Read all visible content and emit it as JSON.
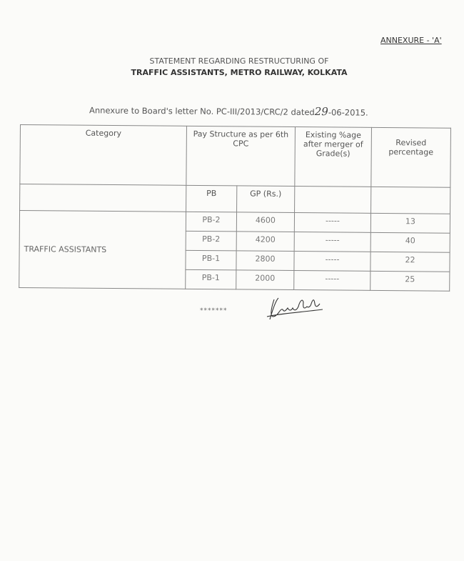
{
  "annexure": "ANNEXURE - 'A'",
  "title_line1": "STATEMENT  REGARDING RESTRUCTURING OF",
  "title_line2": "TRAFFIC ASSISTANTS, METRO RAILWAY, KOLKATA",
  "letter": {
    "prefix": "Annexure to Board's letter No. PC-III/2013/CRC/2 dated",
    "day": "29",
    "suffix": "-06-2015."
  },
  "table": {
    "headers": {
      "category": "Category",
      "pay_structure": "Pay Structure as per 6th CPC",
      "existing": "Existing %age after merger of Grade(s)",
      "revised": "Revised percentage",
      "pb": "PB",
      "gp": "GP (Rs.)"
    },
    "category": "TRAFFIC  ASSISTANTS",
    "rows": [
      {
        "pb": "PB-2",
        "gp": "4600",
        "existing": "-----",
        "revised": "13"
      },
      {
        "pb": "PB-2",
        "gp": "4200",
        "existing": "-----",
        "revised": "40"
      },
      {
        "pb": "PB-1",
        "gp": "2800",
        "existing": "-----",
        "revised": "22"
      },
      {
        "pb": "PB-1",
        "gp": "2000",
        "existing": "-----",
        "revised": "25"
      }
    ]
  },
  "end_marker": "*******",
  "signature": "handwritten signature"
}
